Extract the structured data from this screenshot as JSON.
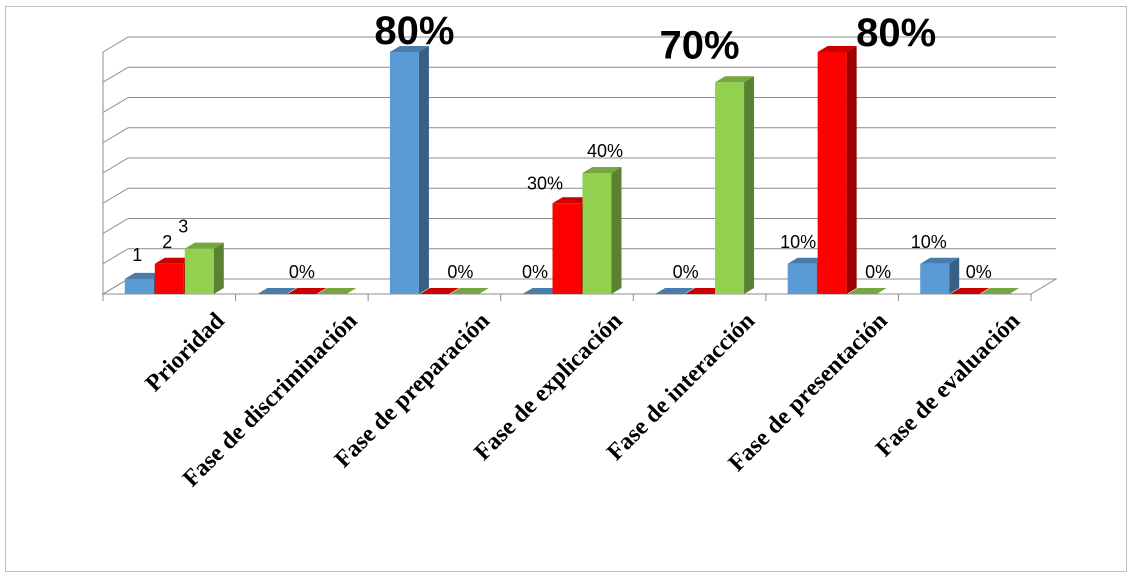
{
  "chart_data": {
    "type": "bar",
    "categories": [
      "Prioridad",
      "Fase de discriminación",
      "Fase de preparación",
      "Fase de explicación",
      "Fase de interacción",
      "Fase de presentación",
      "Fase de evaluación"
    ],
    "series": [
      {
        "color": "#5b9bd5",
        "values": [
          0.05,
          0,
          0.8,
          0,
          0,
          0.1,
          0.1
        ]
      },
      {
        "color": "#ff0000",
        "values": [
          0.1,
          0,
          0,
          0.3,
          0,
          0.8,
          0
        ]
      },
      {
        "color": "#92d050",
        "values": [
          0.15,
          0,
          0,
          0.4,
          0.7,
          0,
          0
        ]
      }
    ],
    "data_labels": [
      [
        "1",
        "",
        "80%",
        "0%",
        "",
        "10%",
        "10%"
      ],
      [
        "2",
        "0%",
        "",
        "30%",
        "0%",
        "",
        "0%"
      ],
      [
        "3",
        "",
        "0%",
        "40%",
        "70%",
        "80%",
        "0%"
      ],
      [
        "",
        "",
        "",
        "",
        "",
        "0%",
        ""
      ]
    ],
    "ylim": [
      0,
      0.8
    ],
    "grid": true,
    "three_d": true,
    "legend": "none"
  }
}
